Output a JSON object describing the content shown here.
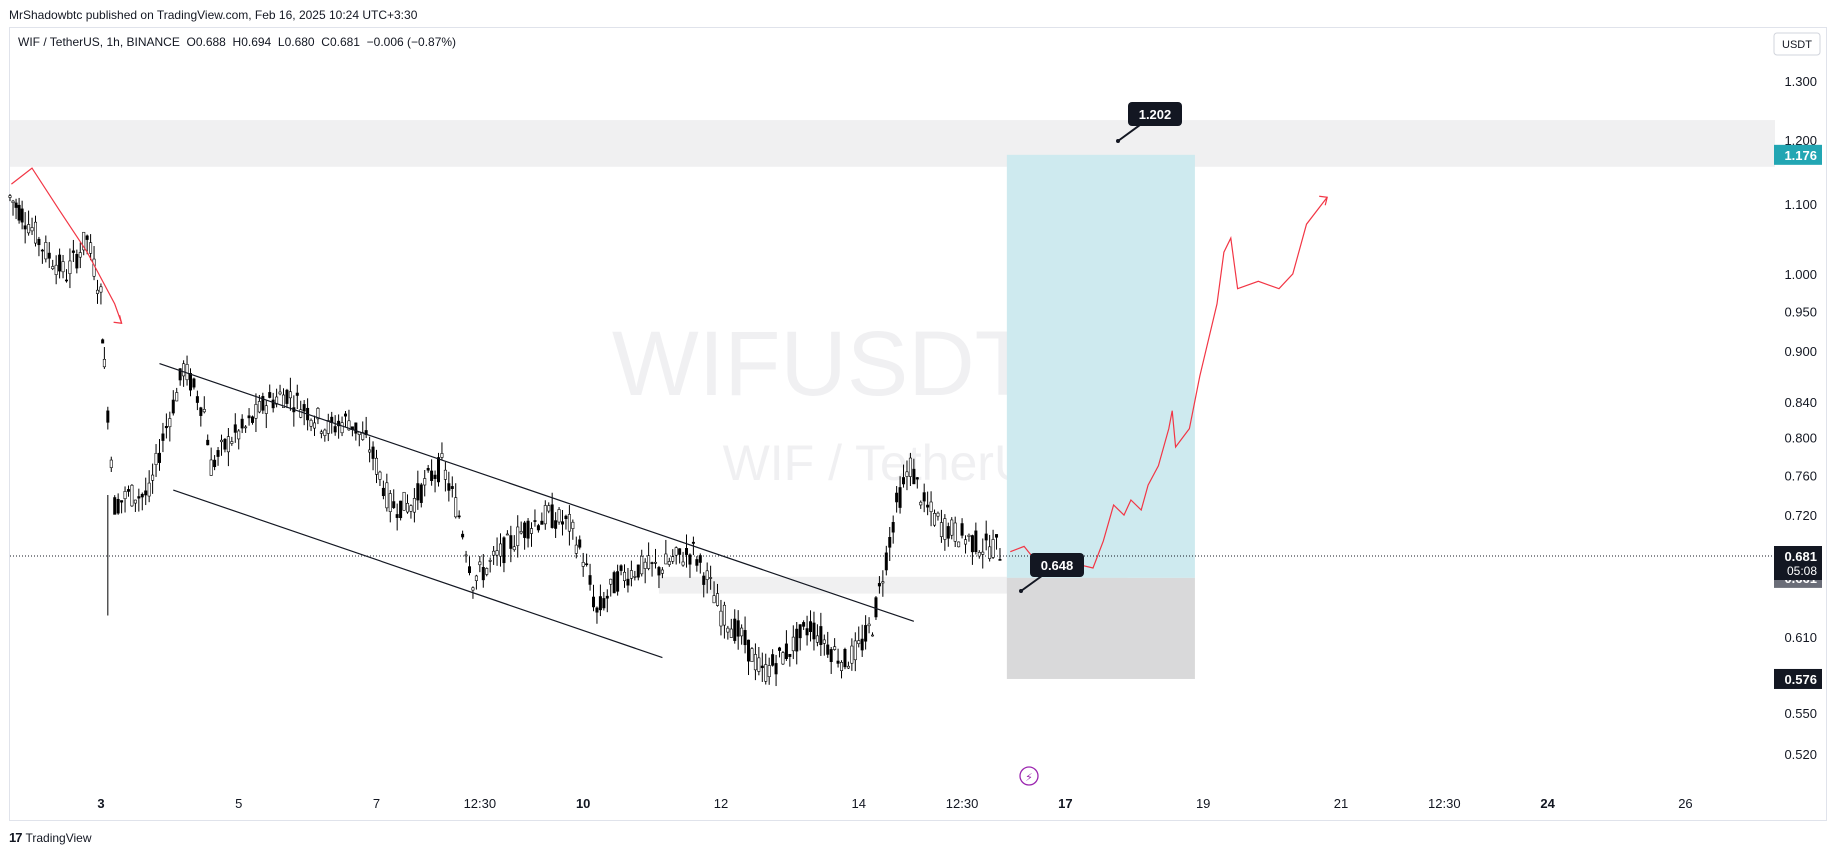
{
  "header": {
    "publisher": "MrShadowbtc published on TradingView.com, Feb 16, 2025 10:24 UTC+3:30"
  },
  "legend": {
    "symbol": "WIF / TetherUS, 1h, BINANCE",
    "open": "O0.688",
    "high": "H0.694",
    "low": "L0.680",
    "close": "C0.681",
    "change": "−0.006 (−0.87%)"
  },
  "currency_button": "USDT",
  "watermark": {
    "title": "WIFUSDT, 1h",
    "subtitle": "WIF / TetherUS"
  },
  "footer": {
    "logo": "17",
    "brand": "TradingView"
  },
  "colors": {
    "teal_label": "#22a6b3",
    "target_box": "#cbe9ee",
    "stop_box": "#d9d9da",
    "zone": "#f0f0f1",
    "projection": "#f23645",
    "dark_label": "#131722",
    "gray_label": "#6a6d78"
  },
  "price_labels": {
    "target_top": "1.176",
    "last_price": "0.681",
    "countdown": "05:08",
    "entry_price": "0.661",
    "stop": "0.576"
  },
  "callouts": {
    "target": "1.202",
    "entry": "0.648"
  },
  "chart_data": {
    "type": "candlestick",
    "title": "WIFUSDT, 1h",
    "y_axis": {
      "scale": "log",
      "ticks": [
        1.3,
        1.2,
        1.1,
        1.0,
        0.95,
        0.9,
        0.84,
        0.8,
        0.76,
        0.72,
        0.61,
        0.55,
        0.52
      ],
      "tick_labels": [
        "1.300",
        "1.200",
        "1.100",
        "1.000",
        "0.950",
        "0.900",
        "0.840",
        "0.800",
        "0.760",
        "0.720",
        "0.610",
        "0.550",
        "0.520"
      ],
      "range": [
        0.5,
        1.33
      ]
    },
    "x_axis": {
      "tick_labels": [
        "3",
        "5",
        "7",
        "12:30",
        "10",
        "12",
        "14",
        "12:30",
        "17",
        "19",
        "21",
        "12:30",
        "24",
        "26"
      ],
      "bold_labels": [
        "3",
        "10",
        "17",
        "24"
      ],
      "tick_days": [
        3,
        5,
        7,
        8.5,
        10,
        12,
        14,
        15.5,
        17,
        19,
        21,
        22.5,
        24,
        26
      ],
      "range_days": [
        1.68,
        27.3
      ]
    },
    "price_path": [
      [
        1.68,
        1.11
      ],
      [
        1.9,
        1.08
      ],
      [
        2.2,
        1.03
      ],
      [
        2.5,
        1.0
      ],
      [
        2.8,
        1.05
      ],
      [
        3.0,
        0.97
      ],
      [
        3.05,
        0.88
      ],
      [
        3.2,
        0.73
      ],
      [
        3.4,
        0.74
      ],
      [
        3.7,
        0.74
      ],
      [
        3.9,
        0.8
      ],
      [
        4.1,
        0.85
      ],
      [
        4.2,
        0.88
      ],
      [
        4.5,
        0.83
      ],
      [
        4.6,
        0.77
      ],
      [
        4.9,
        0.8
      ],
      [
        5.1,
        0.81
      ],
      [
        5.4,
        0.84
      ],
      [
        5.7,
        0.85
      ],
      [
        6.0,
        0.83
      ],
      [
        6.3,
        0.81
      ],
      [
        6.6,
        0.82
      ],
      [
        6.9,
        0.79
      ],
      [
        7.2,
        0.73
      ],
      [
        7.5,
        0.73
      ],
      [
        7.8,
        0.76
      ],
      [
        7.95,
        0.77
      ],
      [
        8.2,
        0.72
      ],
      [
        8.4,
        0.66
      ],
      [
        8.6,
        0.67
      ],
      [
        8.9,
        0.69
      ],
      [
        9.2,
        0.71
      ],
      [
        9.5,
        0.72
      ],
      [
        9.8,
        0.71
      ],
      [
        10.0,
        0.68
      ],
      [
        10.2,
        0.63
      ],
      [
        10.5,
        0.66
      ],
      [
        10.8,
        0.67
      ],
      [
        11.1,
        0.67
      ],
      [
        11.4,
        0.68
      ],
      [
        11.6,
        0.685
      ],
      [
        11.8,
        0.66
      ],
      [
        12.0,
        0.63
      ],
      [
        12.3,
        0.61
      ],
      [
        12.6,
        0.58
      ],
      [
        12.8,
        0.59
      ],
      [
        13.0,
        0.6
      ],
      [
        13.3,
        0.62
      ],
      [
        13.6,
        0.6
      ],
      [
        13.8,
        0.59
      ],
      [
        14.0,
        0.6
      ],
      [
        14.2,
        0.62
      ],
      [
        14.4,
        0.68
      ],
      [
        14.55,
        0.73
      ],
      [
        14.75,
        0.77
      ],
      [
        14.95,
        0.73
      ],
      [
        15.2,
        0.71
      ],
      [
        15.5,
        0.7
      ],
      [
        15.8,
        0.69
      ],
      [
        16.0,
        0.69
      ],
      [
        16.1,
        0.681
      ]
    ],
    "channel": {
      "upper": [
        [
          3.85,
          0.885
        ],
        [
          14.8,
          0.623
        ]
      ],
      "lower": [
        [
          4.05,
          0.745
        ],
        [
          11.15,
          0.593
        ]
      ]
    },
    "position": {
      "entry": 0.661,
      "target": 1.176,
      "stop": 0.576,
      "start_day": 16.15,
      "end_day": 18.88
    },
    "zones": [
      {
        "from": 1.157,
        "to": 1.233,
        "start_day": 1.68,
        "end_day": 27.3
      },
      {
        "from": 0.647,
        "to": 0.662,
        "start_day": 11.1,
        "end_day": 17.9
      }
    ],
    "projection_path": [
      [
        16.2,
        0.685
      ],
      [
        16.4,
        0.69
      ],
      [
        16.6,
        0.674
      ],
      [
        16.8,
        0.67
      ],
      [
        17.0,
        0.67
      ],
      [
        17.2,
        0.673
      ],
      [
        17.4,
        0.67
      ],
      [
        17.55,
        0.695
      ],
      [
        17.7,
        0.73
      ],
      [
        17.85,
        0.72
      ],
      [
        17.95,
        0.735
      ],
      [
        18.1,
        0.725
      ],
      [
        18.2,
        0.75
      ],
      [
        18.35,
        0.77
      ],
      [
        18.5,
        0.81
      ],
      [
        18.55,
        0.83
      ],
      [
        18.6,
        0.79
      ],
      [
        18.8,
        0.81
      ],
      [
        18.95,
        0.87
      ],
      [
        19.2,
        0.96
      ],
      [
        19.3,
        1.03
      ],
      [
        19.4,
        1.05
      ],
      [
        19.5,
        0.98
      ],
      [
        19.8,
        0.99
      ],
      [
        20.1,
        0.98
      ],
      [
        20.3,
        1.0
      ],
      [
        20.5,
        1.07
      ],
      [
        20.8,
        1.11
      ]
    ],
    "early_arrow": [
      [
        1.7,
        1.13
      ],
      [
        2.0,
        1.155
      ],
      [
        2.4,
        1.09
      ],
      [
        2.8,
        1.03
      ],
      [
        3.2,
        0.96
      ],
      [
        3.3,
        0.935
      ]
    ]
  }
}
